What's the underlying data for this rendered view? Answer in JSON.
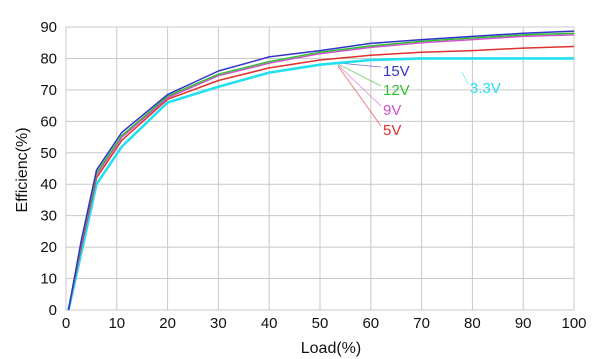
{
  "chart_data": {
    "type": "line",
    "title": "",
    "xlabel": "Load(%)",
    "ylabel": "Efficienc(%)",
    "xlim": [
      0,
      100
    ],
    "ylim": [
      0,
      90
    ],
    "x_ticks": [
      "0",
      "10",
      "20",
      "30",
      "40",
      "50",
      "60",
      "70",
      "80",
      "90",
      "100"
    ],
    "y_ticks": [
      "0",
      "10",
      "20",
      "30",
      "40",
      "50",
      "60",
      "70",
      "80",
      "90"
    ],
    "grid": true,
    "legend": "inline labels near right",
    "series": [
      {
        "name": "3.3V",
        "color": "#22e0f0",
        "points": [
          [
            0.5,
            0
          ],
          [
            3,
            18
          ],
          [
            6,
            40
          ],
          [
            11,
            52
          ],
          [
            20,
            66
          ],
          [
            30,
            71
          ],
          [
            40,
            75.5
          ],
          [
            50,
            78
          ],
          [
            60,
            79.5
          ],
          [
            70,
            80
          ],
          [
            80,
            80
          ],
          [
            90,
            80
          ],
          [
            100,
            80
          ]
        ]
      },
      {
        "name": "5V",
        "color": "#e03030",
        "points": [
          [
            0.5,
            0
          ],
          [
            3,
            20
          ],
          [
            6,
            42
          ],
          [
            11,
            54
          ],
          [
            20,
            67
          ],
          [
            30,
            73
          ],
          [
            40,
            77
          ],
          [
            50,
            79.5
          ],
          [
            60,
            81
          ],
          [
            70,
            82
          ],
          [
            80,
            82.5
          ],
          [
            90,
            83.3
          ],
          [
            100,
            83.8
          ]
        ]
      },
      {
        "name": "9V",
        "color": "#d050d0",
        "points": [
          [
            0.5,
            0
          ],
          [
            3,
            21
          ],
          [
            6,
            43
          ],
          [
            11,
            55
          ],
          [
            20,
            67.5
          ],
          [
            30,
            74.5
          ],
          [
            40,
            78.5
          ],
          [
            50,
            81.5
          ],
          [
            60,
            83.5
          ],
          [
            70,
            85
          ],
          [
            80,
            86
          ],
          [
            90,
            87
          ],
          [
            100,
            87.5
          ]
        ]
      },
      {
        "name": "12V",
        "color": "#30c030",
        "points": [
          [
            0.5,
            0
          ],
          [
            3,
            21.5
          ],
          [
            6,
            43.5
          ],
          [
            11,
            55.5
          ],
          [
            20,
            68
          ],
          [
            30,
            75
          ],
          [
            40,
            79
          ],
          [
            50,
            82
          ],
          [
            60,
            84
          ],
          [
            70,
            85.5
          ],
          [
            80,
            86.5
          ],
          [
            90,
            87.5
          ],
          [
            100,
            88
          ]
        ]
      },
      {
        "name": "15V",
        "color": "#3333cc",
        "points": [
          [
            0.5,
            0
          ],
          [
            3,
            22
          ],
          [
            6,
            44.5
          ],
          [
            11,
            56.5
          ],
          [
            20,
            68.5
          ],
          [
            30,
            76
          ],
          [
            40,
            80.5
          ],
          [
            50,
            82.5
          ],
          [
            60,
            84.8
          ],
          [
            70,
            86
          ],
          [
            80,
            87
          ],
          [
            90,
            88
          ],
          [
            100,
            88.7
          ]
        ]
      }
    ]
  }
}
